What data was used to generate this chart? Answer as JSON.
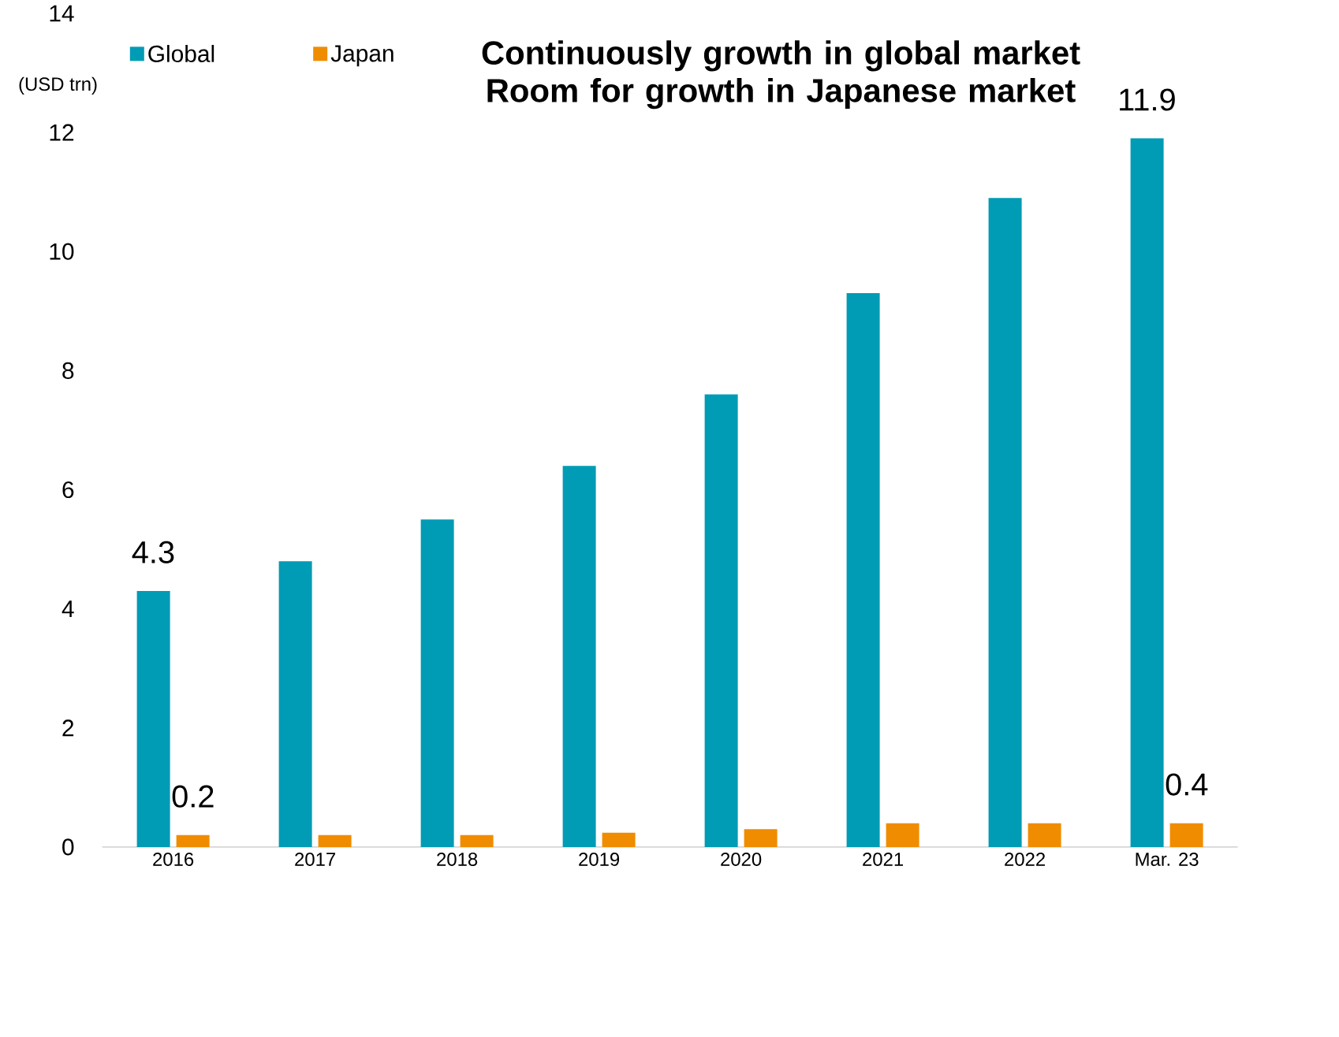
{
  "chart_data": {
    "type": "bar",
    "title": "Continuously growth in global market\nRoom for growth in Japanese market",
    "ylabel": "(USD trn)",
    "categories": [
      "2016",
      "2017",
      "2018",
      "2019",
      "2020",
      "2021",
      "2022",
      "Mar. 23"
    ],
    "series": [
      {
        "name": "Global",
        "color": "#009bb5",
        "values": [
          4.3,
          4.8,
          5.5,
          6.4,
          7.6,
          9.3,
          10.9,
          11.9
        ],
        "value_labels": [
          "4.3",
          null,
          null,
          null,
          null,
          null,
          null,
          "11.9"
        ]
      },
      {
        "name": "Japan",
        "color": "#f08c00",
        "values": [
          0.2,
          0.2,
          0.2,
          0.24,
          0.3,
          0.4,
          0.4,
          0.4
        ],
        "value_labels": [
          "0.2",
          null,
          null,
          null,
          null,
          null,
          null,
          "0.4"
        ]
      }
    ],
    "ylim": [
      0,
      14
    ],
    "yticks": [
      0,
      2,
      4,
      6,
      8,
      10,
      12,
      14
    ],
    "legend": "top left",
    "grid": false
  }
}
